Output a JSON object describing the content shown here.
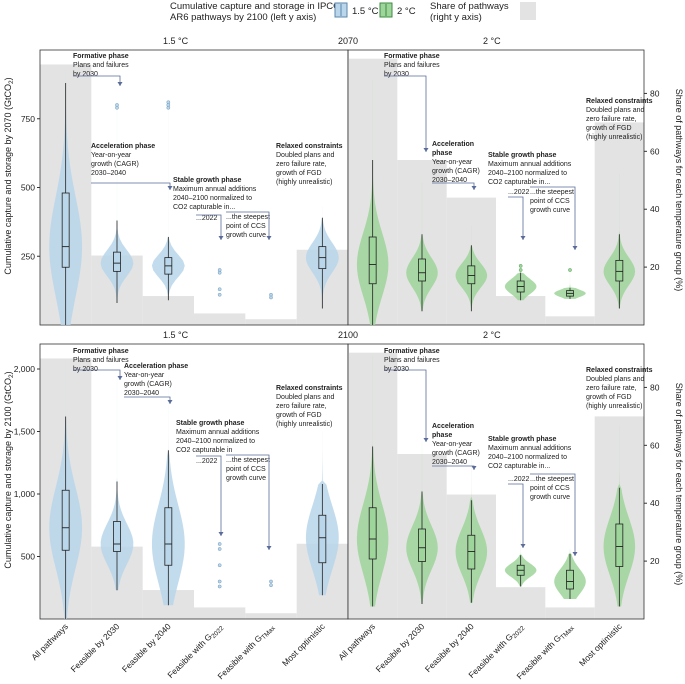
{
  "legend": {
    "title": "Cumulative capture and storage in IPCC AR6 pathways by 2100 (left y axis)",
    "series": [
      {
        "name": "1.5 °C",
        "color": "#b9d6ea",
        "edge": "#5a87ad"
      },
      {
        "name": "2 °C",
        "color": "#9ed59a",
        "edge": "#3f8a42"
      }
    ],
    "share_label": "Share of pathways (right y axis)",
    "share_color": "#e3e3e3"
  },
  "categories": [
    "All pathways",
    "Feasible by 2030",
    "Feasible by 2040",
    "Feasible with G2022",
    "Feasible with GTMax",
    "Most optimistic"
  ],
  "category_labels": [
    {
      "main": "All pathways",
      "sub": ""
    },
    {
      "main": "Feasible by 2030",
      "sub": ""
    },
    {
      "main": "Feasible by 2040",
      "sub": ""
    },
    {
      "main": "Feasible with G",
      "sub": "2022"
    },
    {
      "main": "Feasible with G",
      "sub": "TMax"
    },
    {
      "main": "Most optimistic",
      "sub": ""
    }
  ],
  "rows": [
    {
      "year_label": "2070",
      "ylabel": "Cumulative capture and storage by 2070 (GtCO2)"
    },
    {
      "year_label": "2100",
      "ylabel": "Cumulative capture and storage by 2100 (GtCO2)"
    }
  ],
  "right_ylabel": "Share of pathways for each temperature group (%)",
  "annotations": {
    "formative": {
      "title": "Formative phase",
      "lines": [
        "Plans and failures",
        "by 2030"
      ]
    },
    "acceleration": {
      "title": "Acceleration phase",
      "lines": [
        "Year-on-year",
        "growth (CAGR)",
        "2030–2040"
      ]
    },
    "acceleration_2c": {
      "title": [
        "Acceleration",
        "phase"
      ],
      "lines": [
        "Year-on-year",
        "growth (CAGR)",
        "2030–2040"
      ]
    },
    "stable": {
      "title": "Stable growth phase",
      "lines": [
        "Maximum annual additions",
        "2040–2100 normalized to",
        "CO2 capturable in..."
      ]
    },
    "stable_row2_15": {
      "title": "Stable growth phase",
      "lines": [
        "Maximum annual additions",
        "2040–2100 normalized to",
        "CO2 capturable in"
      ]
    },
    "g2022": "...2022",
    "steepest": [
      "...the steepest",
      "point of CCS",
      "growth curve"
    ],
    "relaxed": {
      "title": "Relaxed constraints",
      "lines": [
        "Doubled plans and",
        "zero failure rate,",
        "growth of FGD",
        "(highly unrealistic)"
      ]
    }
  },
  "chart_data": [
    {
      "type": "violin",
      "panel": "2070, 1.5 °C",
      "title": "1.5 °C",
      "ylim": [
        0,
        1000
      ],
      "yticks": [
        250,
        500,
        750
      ],
      "share_ylim": [
        0,
        95
      ],
      "share_yticks": [
        20,
        40,
        60,
        80
      ],
      "share": [
        90,
        24,
        10,
        4,
        2,
        26
      ],
      "stats": [
        {
          "min": 0,
          "q1": 210,
          "median": 285,
          "q3": 480,
          "max": 880,
          "top": 930
        },
        {
          "min": 80,
          "q1": 195,
          "median": 225,
          "q3": 265,
          "max": 380,
          "top": 800
        },
        {
          "min": 90,
          "q1": 185,
          "median": 215,
          "q3": 245,
          "max": 320,
          "top": 810
        },
        {
          "min": 0,
          "q1": 0,
          "median": 0,
          "q3": 0,
          "max": 0,
          "top": 0
        },
        {
          "min": 0,
          "q1": 0,
          "median": 0,
          "q3": 0,
          "max": 0,
          "top": 0
        },
        {
          "min": 60,
          "q1": 205,
          "median": 245,
          "q3": 285,
          "max": 390,
          "top": 430
        }
      ],
      "outliers": [
        [],
        [
          800,
          790
        ],
        [
          810,
          800,
          790
        ],
        [
          200,
          190,
          130,
          110
        ],
        [
          110,
          100
        ],
        []
      ]
    },
    {
      "type": "violin",
      "panel": "2070, 2 °C",
      "title": "2 °C",
      "ylim": [
        0,
        1000
      ],
      "yticks": [
        250,
        500,
        750
      ],
      "share_ylim": [
        0,
        95
      ],
      "share_yticks": [
        20,
        40,
        60,
        80
      ],
      "share": [
        92,
        57,
        44,
        10,
        3,
        70
      ],
      "stats": [
        {
          "min": 0,
          "q1": 150,
          "median": 220,
          "q3": 320,
          "max": 600,
          "top": 890
        },
        {
          "min": 50,
          "q1": 160,
          "median": 190,
          "q3": 240,
          "max": 330,
          "top": 520
        },
        {
          "min": 50,
          "q1": 150,
          "median": 180,
          "q3": 215,
          "max": 290,
          "top": 360
        },
        {
          "min": 90,
          "q1": 120,
          "median": 140,
          "q3": 160,
          "max": 190,
          "top": 220
        },
        {
          "min": 95,
          "q1": 105,
          "median": 115,
          "q3": 125,
          "max": 135,
          "top": 200
        },
        {
          "min": 60,
          "q1": 160,
          "median": 195,
          "q3": 235,
          "max": 330,
          "top": 550
        }
      ],
      "outliers": [
        [],
        [],
        [],
        [
          215,
          200
        ],
        [
          200
        ],
        []
      ]
    },
    {
      "type": "violin",
      "panel": "2100, 1.5 °C",
      "title": "1.5 °C",
      "ylim": [
        0,
        2200
      ],
      "yticks": [
        500,
        1000,
        1500,
        2000
      ],
      "share_ylim": [
        0,
        95
      ],
      "share_yticks": [
        20,
        40,
        60,
        80
      ],
      "share": [
        90,
        25,
        10,
        4,
        2,
        26
      ],
      "stats": [
        {
          "min": 0,
          "q1": 550,
          "median": 730,
          "q3": 1030,
          "max": 1620,
          "top": 2050
        },
        {
          "min": 230,
          "q1": 540,
          "median": 600,
          "q3": 780,
          "max": 1100,
          "top": 1950
        },
        {
          "min": 110,
          "q1": 430,
          "median": 600,
          "q3": 890,
          "max": 1350,
          "top": 1950
        },
        {
          "min": 0,
          "q1": 0,
          "median": 0,
          "q3": 0,
          "max": 0,
          "top": 0
        },
        {
          "min": 0,
          "q1": 0,
          "median": 0,
          "q3": 0,
          "max": 0,
          "top": 0
        },
        {
          "min": 190,
          "q1": 450,
          "median": 650,
          "q3": 830,
          "max": 1080,
          "top": 1500
        }
      ],
      "outliers": [
        [],
        [],
        [],
        [
          600,
          560,
          430,
          300,
          260
        ],
        [
          300,
          270
        ],
        []
      ]
    },
    {
      "type": "violin",
      "panel": "2100, 2 °C",
      "title": "2 °C",
      "ylim": [
        0,
        2200
      ],
      "yticks": [
        500,
        1000,
        1500,
        2000
      ],
      "share_ylim": [
        0,
        95
      ],
      "share_yticks": [
        20,
        40,
        60,
        80
      ],
      "share": [
        92,
        57,
        43,
        11,
        4,
        70
      ],
      "stats": [
        {
          "min": 100,
          "q1": 480,
          "median": 640,
          "q3": 890,
          "max": 1380,
          "top": 2100
        },
        {
          "min": 120,
          "q1": 460,
          "median": 570,
          "q3": 720,
          "max": 1020,
          "top": 1420
        },
        {
          "min": 130,
          "q1": 400,
          "median": 540,
          "q3": 670,
          "max": 950,
          "top": 1300
        },
        {
          "min": 260,
          "q1": 350,
          "median": 390,
          "q3": 430,
          "max": 510,
          "top": 630
        },
        {
          "min": 160,
          "q1": 240,
          "median": 300,
          "q3": 390,
          "max": 520,
          "top": 560
        },
        {
          "min": 100,
          "q1": 420,
          "median": 580,
          "q3": 760,
          "max": 1050,
          "top": 1550
        }
      ],
      "outliers": [
        [],
        [],
        [],
        [],
        [],
        []
      ]
    }
  ]
}
